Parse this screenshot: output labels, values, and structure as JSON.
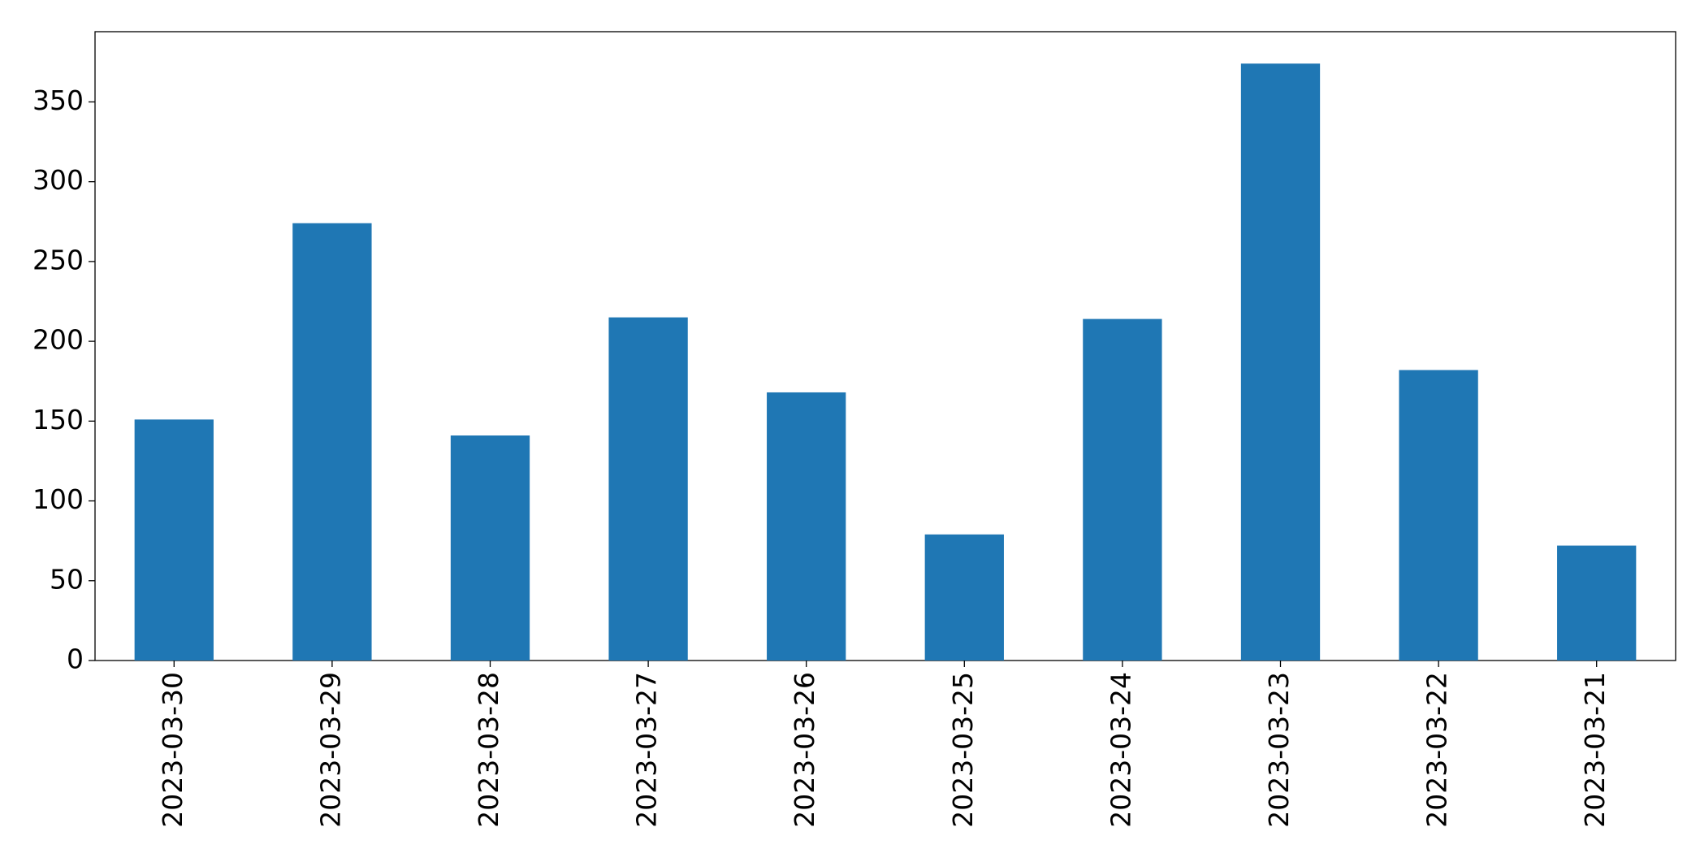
{
  "chart_data": {
    "type": "bar",
    "categories": [
      "2023-03-30",
      "2023-03-29",
      "2023-03-28",
      "2023-03-27",
      "2023-03-26",
      "2023-03-25",
      "2023-03-24",
      "2023-03-23",
      "2023-03-22",
      "2023-03-21"
    ],
    "values": [
      151,
      274,
      141,
      215,
      168,
      79,
      214,
      374,
      182,
      72
    ],
    "color": "#1f77b4",
    "ylim": [
      0,
      394
    ],
    "yticks": [
      0,
      50,
      100,
      150,
      200,
      250,
      300,
      350
    ],
    "grid": false
  }
}
